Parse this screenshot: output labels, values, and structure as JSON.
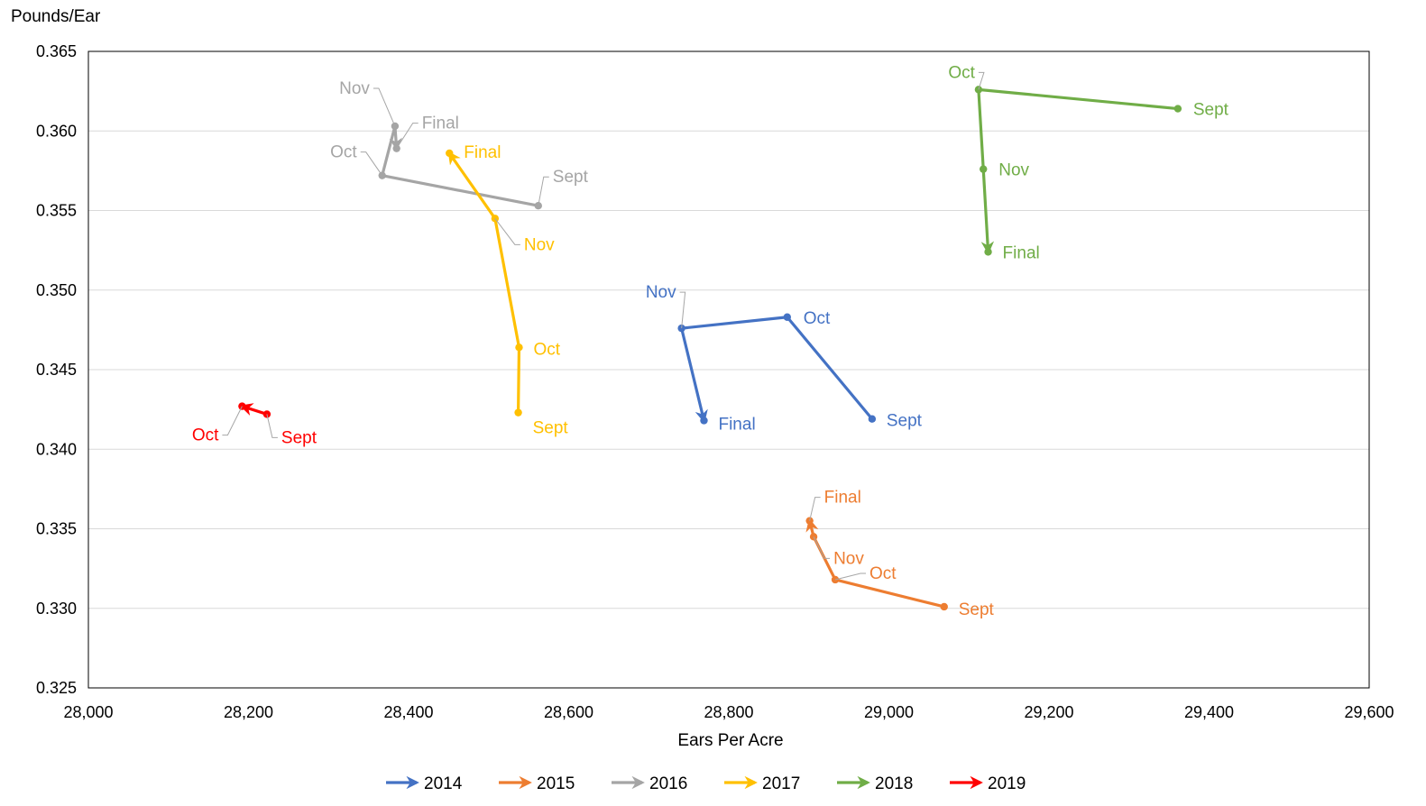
{
  "chart_data": {
    "type": "line",
    "title": "",
    "xlabel": "Ears Per Acre",
    "ylabel": "Pounds/Ear",
    "xlim": [
      28000,
      29600
    ],
    "ylim": [
      0.325,
      0.365
    ],
    "x_ticks": [
      {
        "value": 28000,
        "label": "28,000"
      },
      {
        "value": 28200,
        "label": "28,200"
      },
      {
        "value": 28400,
        "label": "28,400"
      },
      {
        "value": 28600,
        "label": "28,600"
      },
      {
        "value": 28800,
        "label": "28,800"
      },
      {
        "value": 29000,
        "label": "29,000"
      },
      {
        "value": 29200,
        "label": "29,200"
      },
      {
        "value": 29400,
        "label": "29,400"
      },
      {
        "value": 29600,
        "label": "29,600"
      }
    ],
    "y_ticks": [
      {
        "value": 0.325,
        "label": "0.325"
      },
      {
        "value": 0.33,
        "label": "0.330"
      },
      {
        "value": 0.335,
        "label": "0.335"
      },
      {
        "value": 0.34,
        "label": "0.340"
      },
      {
        "value": 0.345,
        "label": "0.345"
      },
      {
        "value": 0.35,
        "label": "0.350"
      },
      {
        "value": 0.355,
        "label": "0.355"
      },
      {
        "value": 0.36,
        "label": "0.360"
      },
      {
        "value": 0.365,
        "label": "0.365"
      }
    ],
    "grid": "horizontal",
    "legend_position": "bottom",
    "series": [
      {
        "name": "2014",
        "color": "#4472C4",
        "points": [
          {
            "label": "Sept",
            "x": 28979,
            "y": 0.3419
          },
          {
            "label": "Oct",
            "x": 28873,
            "y": 0.3483
          },
          {
            "label": "Nov",
            "x": 28741,
            "y": 0.3476
          },
          {
            "label": "Final",
            "x": 28769,
            "y": 0.3418
          }
        ]
      },
      {
        "name": "2015",
        "color": "#ED7D31",
        "points": [
          {
            "label": "Sept",
            "x": 29069,
            "y": 0.3301
          },
          {
            "label": "Oct",
            "x": 28933,
            "y": 0.3318
          },
          {
            "label": "Nov",
            "x": 28906,
            "y": 0.3345
          },
          {
            "label": "Final",
            "x": 28901,
            "y": 0.3355
          }
        ]
      },
      {
        "name": "2016",
        "color": "#A5A5A5",
        "points": [
          {
            "label": "Sept",
            "x": 28562,
            "y": 0.3553
          },
          {
            "label": "Oct",
            "x": 28367,
            "y": 0.3572
          },
          {
            "label": "Nov",
            "x": 28383,
            "y": 0.3603
          },
          {
            "label": "Final",
            "x": 28385,
            "y": 0.3589
          }
        ]
      },
      {
        "name": "2017",
        "color": "#FFC000",
        "points": [
          {
            "label": "Sept",
            "x": 28537,
            "y": 0.3423
          },
          {
            "label": "Oct",
            "x": 28538,
            "y": 0.3464
          },
          {
            "label": "Nov",
            "x": 28508,
            "y": 0.3545
          },
          {
            "label": "Final",
            "x": 28451,
            "y": 0.3586
          }
        ]
      },
      {
        "name": "2018",
        "color": "#70AD47",
        "points": [
          {
            "label": "Sept",
            "x": 29361,
            "y": 0.3614
          },
          {
            "label": "Oct",
            "x": 29112,
            "y": 0.3626
          },
          {
            "label": "Nov",
            "x": 29118,
            "y": 0.3576
          },
          {
            "label": "Final",
            "x": 29124,
            "y": 0.3524
          }
        ]
      },
      {
        "name": "2019",
        "color": "#FF0000",
        "points": [
          {
            "label": "Sept",
            "x": 28223,
            "y": 0.3422
          },
          {
            "label": "Oct",
            "x": 28192,
            "y": 0.3427
          }
        ]
      }
    ]
  }
}
